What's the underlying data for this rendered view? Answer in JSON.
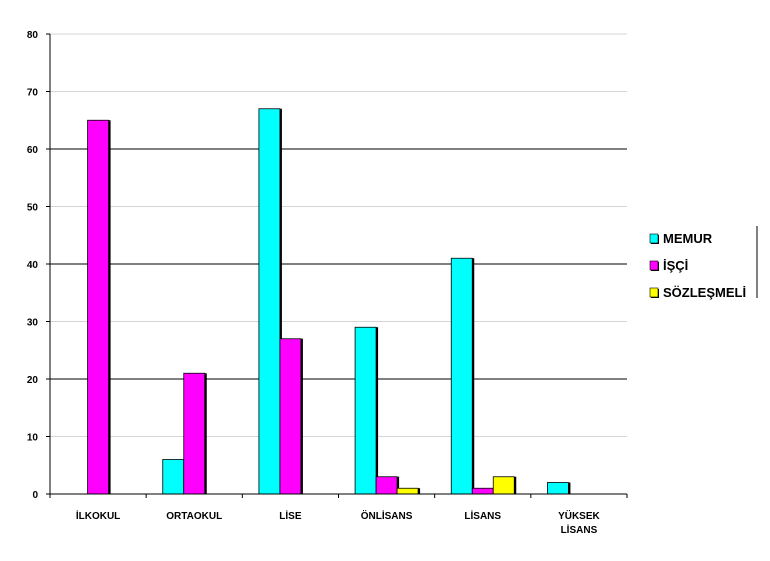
{
  "chart_data": {
    "type": "bar",
    "categories": [
      [
        "İLKOKUL"
      ],
      [
        "ORTAOKUL"
      ],
      [
        "LİSE"
      ],
      [
        "ÖNLİSANS"
      ],
      [
        "LİSANS"
      ],
      [
        "YÜKSEK",
        "LİSANS"
      ]
    ],
    "series": [
      {
        "name": "MEMUR",
        "color": "#00ffff",
        "values": [
          0,
          6,
          67,
          29,
          41,
          2
        ]
      },
      {
        "name": "İŞÇİ",
        "color": "#ff00ff",
        "values": [
          65,
          21,
          27,
          3,
          1,
          0
        ]
      },
      {
        "name": "SÖZLEŞMELİ",
        "color": "#ffff00",
        "values": [
          0,
          0,
          0,
          1,
          3,
          0
        ]
      }
    ],
    "ylim": [
      0,
      80
    ],
    "yticks": [
      0,
      10,
      20,
      30,
      40,
      50,
      60,
      70,
      80
    ],
    "grid": true,
    "legend_position": "right"
  }
}
